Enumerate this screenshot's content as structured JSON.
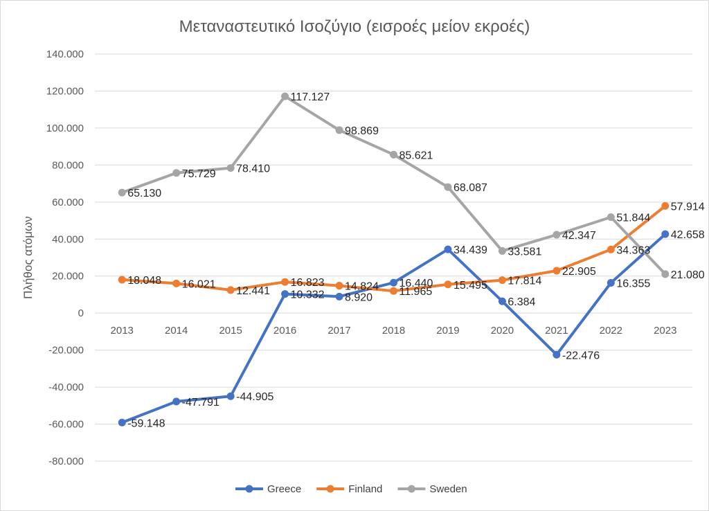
{
  "chart_data": {
    "type": "line",
    "title": "Μεταναστευτικό Ισοζύγιο (εισροές μείον εκροές)",
    "xlabel": "",
    "ylabel": "Πλήθος ατόμων",
    "categories": [
      "2013",
      "2014",
      "2015",
      "2016",
      "2017",
      "2018",
      "2019",
      "2020",
      "2021",
      "2022",
      "2023"
    ],
    "ylim": [
      -80000,
      140000
    ],
    "yticks": [
      140000,
      120000,
      100000,
      80000,
      60000,
      40000,
      20000,
      0,
      -20000,
      -40000,
      -60000,
      -80000
    ],
    "ytick_labels": [
      "140.000",
      "120.000",
      "100.000",
      "80.000",
      "60.000",
      "40.000",
      "20.000",
      "0",
      "-20.000",
      "-40.000",
      "-60.000",
      "-80.000"
    ],
    "grid": true,
    "legend_position": "bottom",
    "series": [
      {
        "name": "Greece",
        "color": "#4472C4",
        "values": [
          -59148,
          -47791,
          -44905,
          10332,
          8920,
          16440,
          34439,
          6384,
          -22476,
          16355,
          42658
        ],
        "labels": [
          "-59.148",
          "-47.791",
          "-44.905",
          "10.332",
          "8.920",
          "16.440",
          "34.439",
          "6.384",
          "-22.476",
          "16.355",
          "42.658"
        ]
      },
      {
        "name": "Finland",
        "color": "#ED7D31",
        "values": [
          18048,
          16021,
          12441,
          16823,
          14824,
          11965,
          15495,
          17814,
          22905,
          34363,
          57914
        ],
        "labels": [
          "18.048",
          "16.021",
          "12.441",
          "16.823",
          "14.824",
          "11.965",
          "15.495",
          "17.814",
          "22.905",
          "34.363",
          "57.914"
        ]
      },
      {
        "name": "Sweden",
        "color": "#A5A5A5",
        "values": [
          65130,
          75729,
          78410,
          117127,
          98869,
          85621,
          68087,
          33581,
          42347,
          51844,
          21080
        ],
        "labels": [
          "65.130",
          "75.729",
          "78.410",
          "117.127",
          "98.869",
          "85.621",
          "68.087",
          "33.581",
          "42.347",
          "51.844",
          "21.080"
        ]
      }
    ]
  }
}
